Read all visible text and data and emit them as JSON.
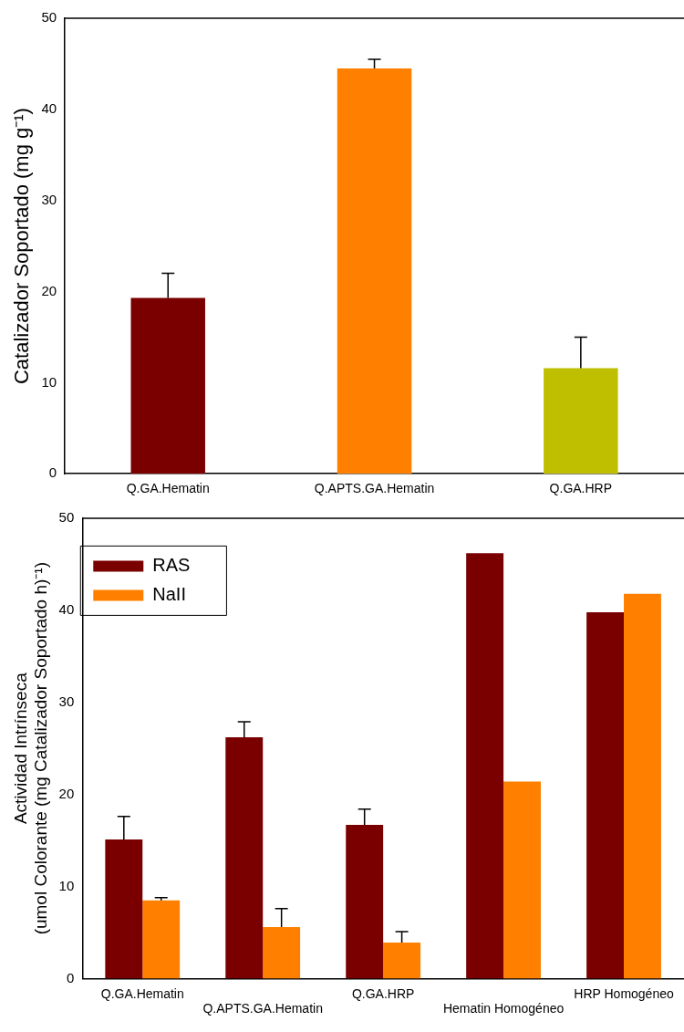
{
  "chart_data": [
    {
      "type": "bar",
      "ylabel": "Catalizador Soportado (mg g⁻¹)",
      "categories": [
        "Q.GA.Hematin",
        "Q.APTS.GA.Hematin",
        "Q.GA.HRP"
      ],
      "values": [
        19.3,
        44.5,
        11.6
      ],
      "colors": [
        "#7a0000",
        "#ff8000",
        "#bfbf00"
      ],
      "errors": [
        [
          19.3,
          22
        ],
        [
          44.5,
          45.5
        ],
        [
          11.6,
          15
        ]
      ],
      "ylim": [
        0,
        50
      ],
      "yticks": [
        0,
        10,
        20,
        30,
        40,
        50
      ],
      "grid": false,
      "legend": false
    },
    {
      "type": "bar",
      "ylabel": [
        "Actividad Intrínseca",
        "(umol Colorante (mg Catalizador Soportado h)⁻¹)"
      ],
      "categories": [
        "Q.GA.Hematin",
        "Q.APTS.GA.Hematin",
        "Q.GA.HRP",
        "Hematin Homogéneo",
        "HRP Homogéneo"
      ],
      "series": [
        {
          "name": "RAS",
          "color": "#7a0000",
          "values": [
            15.1,
            26.2,
            16.7,
            46.2,
            39.8
          ],
          "errors": [
            [
              15.1,
              17.6
            ],
            [
              26.2,
              27.9
            ],
            [
              16.7,
              18.4
            ],
            null,
            null
          ]
        },
        {
          "name": "NaII",
          "color": "#ff8000",
          "values": [
            8.5,
            5.6,
            3.9,
            21.4,
            41.8
          ],
          "errors": [
            [
              8.5,
              8.8
            ],
            [
              5.6,
              7.6
            ],
            [
              3.9,
              5.1
            ],
            null,
            null
          ]
        }
      ],
      "ylim": [
        0,
        50
      ],
      "yticks": [
        0,
        10,
        20,
        30,
        40,
        50
      ],
      "grid": false,
      "legend": "top left"
    }
  ]
}
